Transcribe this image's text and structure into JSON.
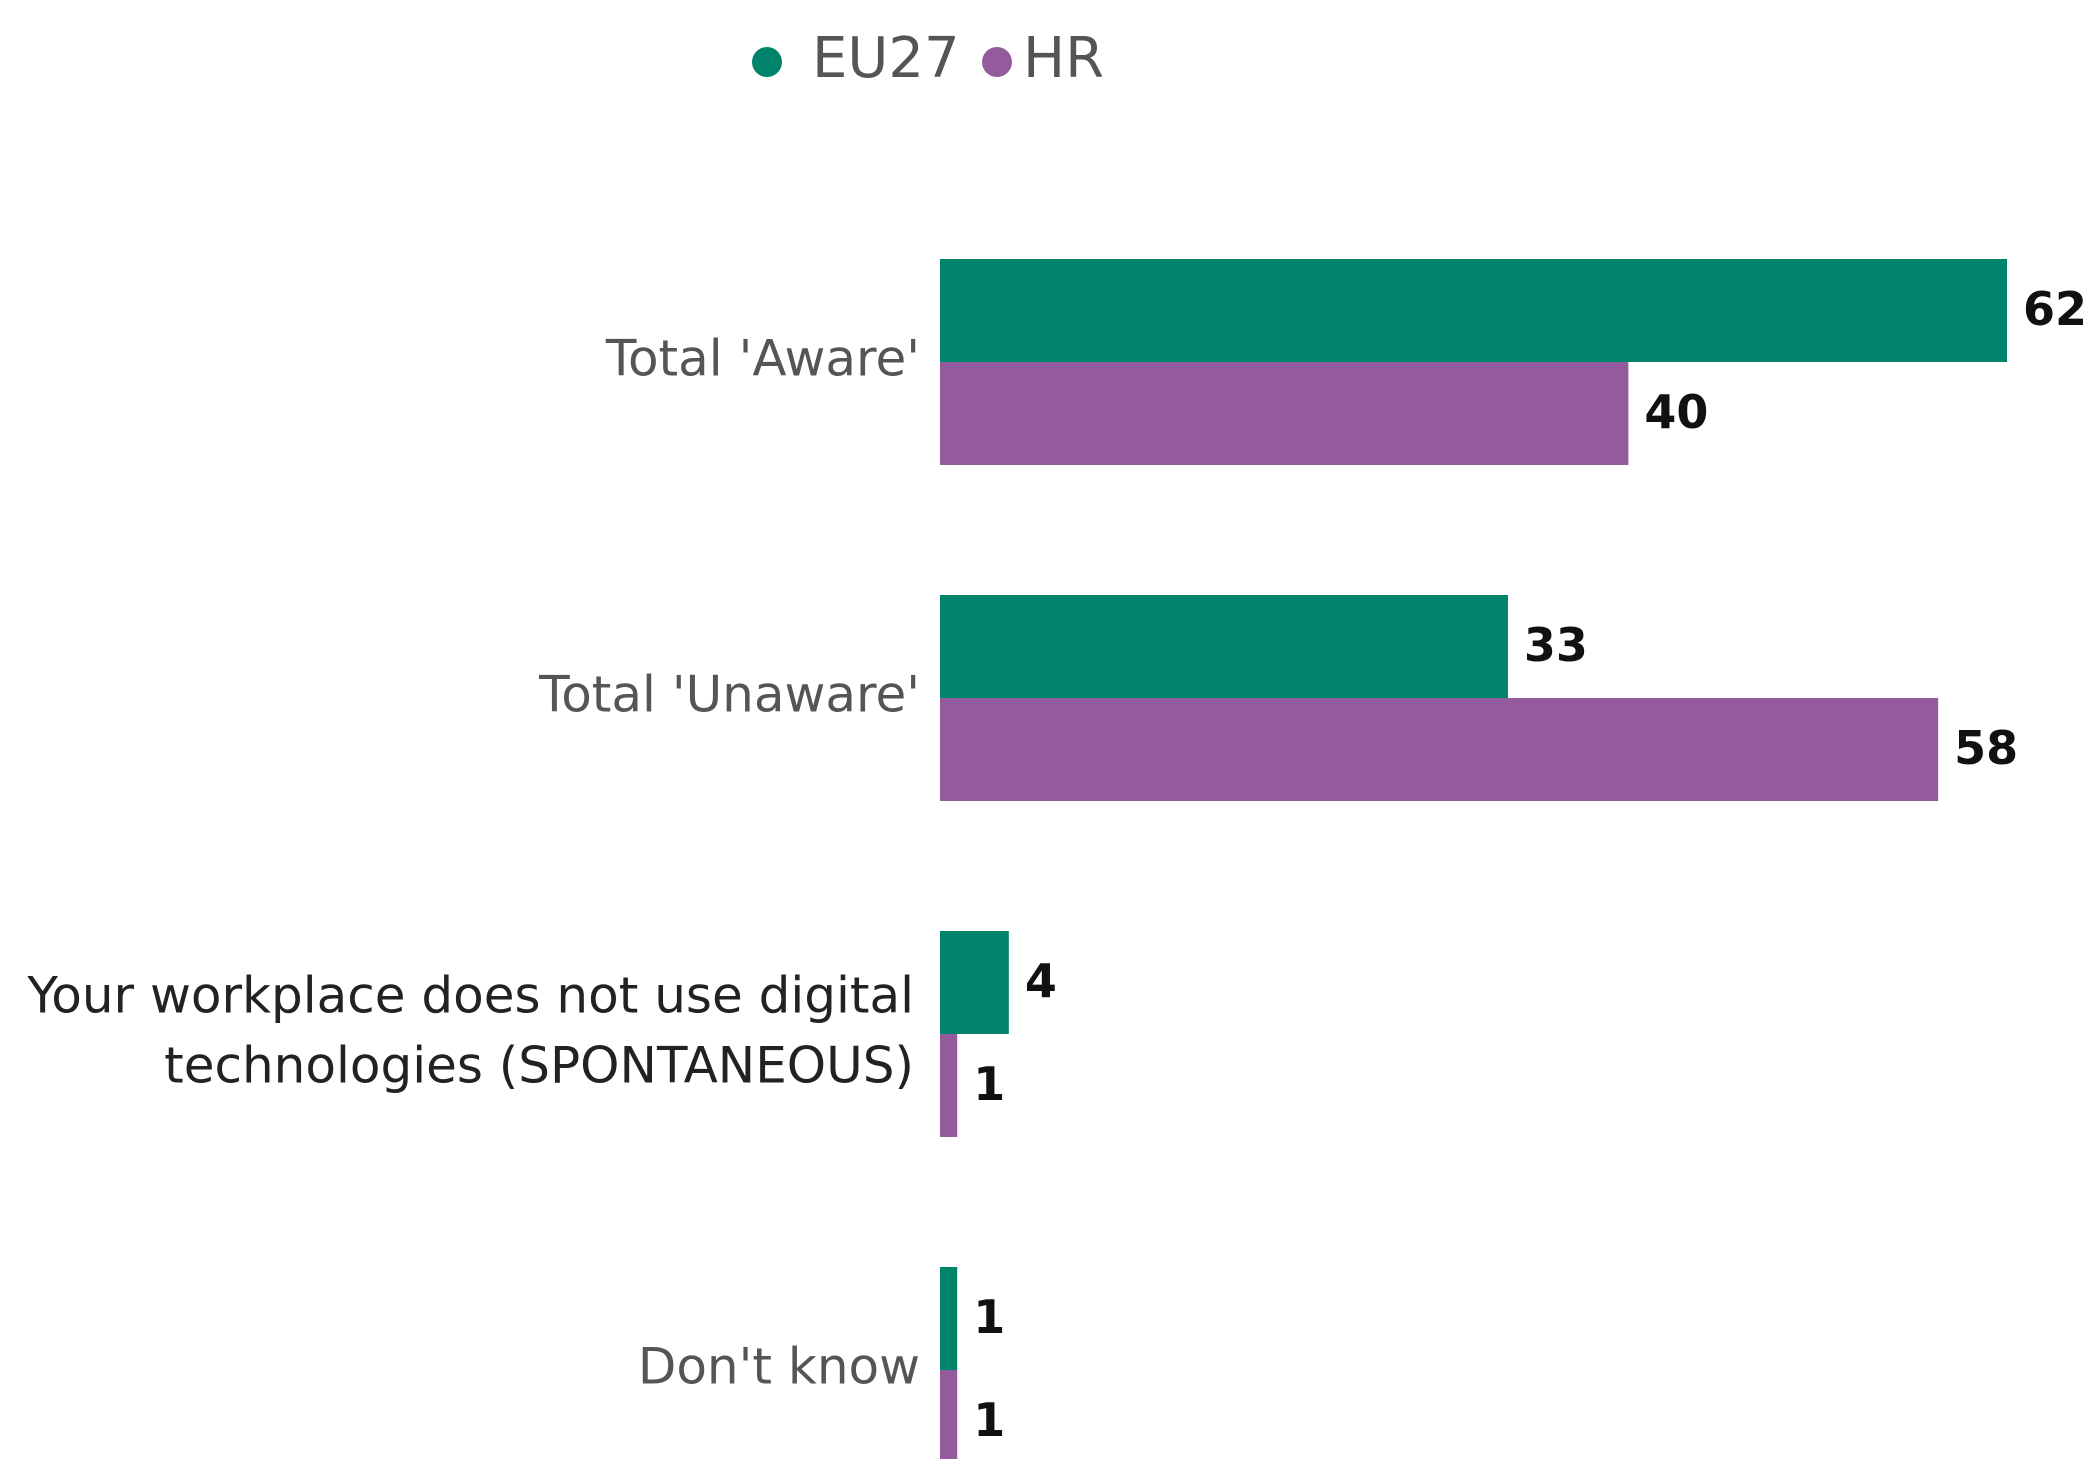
{
  "chart_data": {
    "type": "bar",
    "orientation": "horizontal",
    "categories": [
      "Total 'Aware'",
      "Total 'Unaware'",
      [
        "Your workplace does not use digital",
        "technologies (SPONTANEOUS)"
      ],
      "Don't know"
    ],
    "series": [
      {
        "name": "EU27",
        "color": "#00836b",
        "values": [
          62,
          33,
          4,
          1
        ]
      },
      {
        "name": "HR",
        "color": "#935b9c",
        "values": [
          40,
          58,
          1,
          1
        ]
      }
    ],
    "legend": "top"
  }
}
